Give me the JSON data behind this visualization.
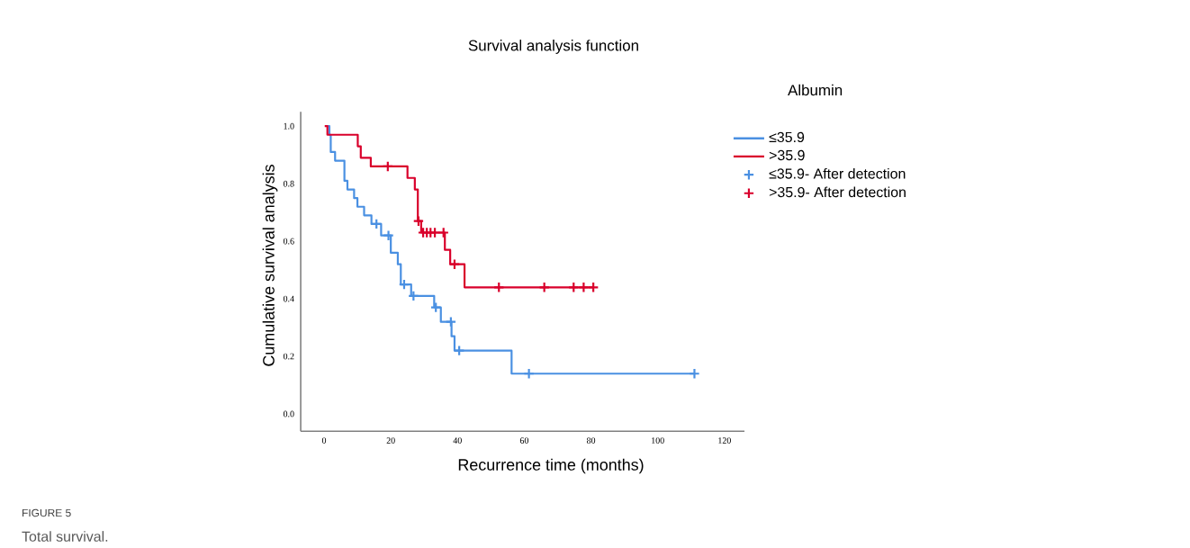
{
  "chart_data": {
    "type": "step",
    "title": "Survival analysis function",
    "xlabel": "Recurrence time (months)",
    "ylabel": "Cumulative survival analysis",
    "legend_title": "Albumin",
    "legend": "right",
    "xlim": [
      -7,
      126
    ],
    "ylim": [
      -0.06,
      1.05
    ],
    "xticks": [
      0,
      20,
      40,
      60,
      80,
      100,
      120
    ],
    "yticks": [
      {
        "value": 0,
        "label": "0.0"
      },
      0.2,
      0.4,
      0.6,
      0.8,
      {
        "value": 1,
        "label": "1.0"
      }
    ],
    "series": [
      {
        "name": "≤35.9",
        "color": "#4a90e2",
        "x": [
          1.1,
          1.6,
          2,
          3.3,
          6.1,
          7,
          9,
          10,
          12,
          14.2,
          17.1,
          20,
          22.1,
          23,
          26.1,
          33,
          35,
          38.2,
          39.1,
          56.2,
          111
        ],
        "values": [
          1,
          0.97,
          0.91,
          0.88,
          0.81,
          0.78,
          0.75,
          0.72,
          0.69,
          0.66,
          0.62,
          0.56,
          0.52,
          0.45,
          0.41,
          0.37,
          0.32,
          0.27,
          0.22,
          0.14,
          0.14
        ]
      },
      {
        "name": ">35.9",
        "color": "#d9002b",
        "x": [
          0.2,
          1,
          10.1,
          11,
          14,
          25,
          27.2,
          28.1,
          29.1,
          36.2,
          37.8,
          42.1,
          80.7
        ],
        "values": [
          1,
          0.97,
          0.93,
          0.89,
          0.86,
          0.82,
          0.78,
          0.67,
          0.63,
          0.57,
          0.52,
          0.44,
          0.44
        ]
      },
      {
        "name": "≤35.9- After detection",
        "type": "scatter",
        "marker": "cross",
        "color": "#4a90e2",
        "x": [
          15.7,
          19.3,
          24,
          26.8,
          33.5,
          38,
          40.5,
          61.4,
          111
        ],
        "values": [
          0.66,
          0.62,
          0.45,
          0.41,
          0.37,
          0.32,
          0.22,
          0.14,
          0.14
        ]
      },
      {
        "name": ">35.9- After detection",
        "type": "scatter",
        "marker": "cross",
        "color": "#d9002b",
        "x": [
          19.1,
          28.3,
          29.7,
          30.8,
          31.9,
          33.2,
          35.8,
          39.1,
          52.4,
          66,
          74.8,
          77.8,
          80.7
        ],
        "values": [
          0.86,
          0.67,
          0.63,
          0.63,
          0.63,
          0.63,
          0.63,
          0.52,
          0.44,
          0.44,
          0.44,
          0.44,
          0.44
        ]
      }
    ],
    "annotations": [
      "FIGURE 5",
      "Total survival."
    ]
  }
}
